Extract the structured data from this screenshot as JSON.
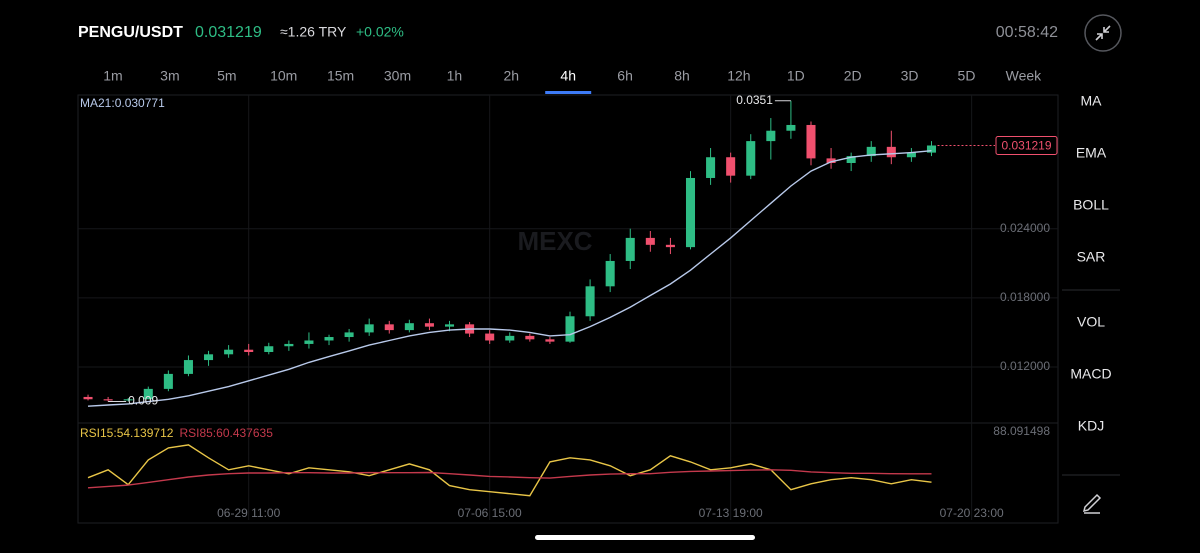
{
  "header": {
    "symbol": "PENGU/USDT",
    "approx": "≈1.26 TRY",
    "change": "+0.02%",
    "time": "00:58:42"
  },
  "timeframes": [
    "1m",
    "3m",
    "5m",
    "10m",
    "15m",
    "30m",
    "1h",
    "2h",
    "4h",
    "6h",
    "8h",
    "12h",
    "1D",
    "2D",
    "3D",
    "5D",
    "Week"
  ],
  "selected_timeframe": 8,
  "indicators": [
    "MA",
    "EMA",
    "BOLL",
    "SAR",
    "VOL",
    "MACD",
    "KDJ"
  ],
  "chart_data": {
    "type": "candlestick",
    "watermark": "MEXC",
    "up_color": "#2ebd85",
    "down_color": "#f0506e",
    "open": [
      0.0094,
      0.0092,
      0.0091,
      0.0092,
      0.0101,
      0.0114,
      0.0126,
      0.0131,
      0.0135,
      0.0133,
      0.0138,
      0.014,
      0.0143,
      0.0146,
      0.015,
      0.0157,
      0.0152,
      0.0158,
      0.0155,
      0.0157,
      0.0149,
      0.0143,
      0.0147,
      0.0144,
      0.0142,
      0.0164,
      0.019,
      0.0212,
      0.0232,
      0.0226,
      0.0224,
      0.0284,
      0.0302,
      0.0286,
      0.0316,
      0.0325,
      0.033,
      0.0301,
      0.0297,
      0.0303,
      0.0311,
      0.0302,
      0.0306
    ],
    "high": [
      0.0096,
      0.0094,
      0.0093,
      0.0103,
      0.0117,
      0.013,
      0.0134,
      0.0139,
      0.014,
      0.0141,
      0.0143,
      0.015,
      0.0148,
      0.0153,
      0.0162,
      0.016,
      0.0161,
      0.0162,
      0.016,
      0.0159,
      0.0152,
      0.015,
      0.0149,
      0.0146,
      0.0168,
      0.0196,
      0.0218,
      0.024,
      0.0238,
      0.0232,
      0.029,
      0.031,
      0.0306,
      0.0322,
      0.0336,
      0.0351,
      0.0333,
      0.031,
      0.0306,
      0.0316,
      0.0325,
      0.031,
      0.0316
    ],
    "low": [
      0.0091,
      0.009,
      0.009022,
      0.0092,
      0.0099,
      0.0112,
      0.0121,
      0.0128,
      0.013,
      0.0131,
      0.0134,
      0.0136,
      0.0139,
      0.0142,
      0.0147,
      0.0149,
      0.015,
      0.0152,
      0.0151,
      0.0146,
      0.014,
      0.0141,
      0.0142,
      0.014,
      0.0141,
      0.016,
      0.0185,
      0.0205,
      0.022,
      0.0218,
      0.0222,
      0.0278,
      0.028,
      0.0283,
      0.03,
      0.0318,
      0.0295,
      0.0292,
      0.029,
      0.0298,
      0.0296,
      0.0298,
      0.0303
    ],
    "close": [
      0.0092,
      0.0091,
      0.0092,
      0.0101,
      0.0114,
      0.0126,
      0.0131,
      0.0135,
      0.0133,
      0.0138,
      0.014,
      0.0143,
      0.0146,
      0.015,
      0.0157,
      0.0152,
      0.0158,
      0.0155,
      0.0157,
      0.0149,
      0.0143,
      0.0147,
      0.0144,
      0.0142,
      0.0164,
      0.019,
      0.0212,
      0.0232,
      0.0226,
      0.0224,
      0.0284,
      0.0302,
      0.0286,
      0.0316,
      0.0325,
      0.033,
      0.0301,
      0.0297,
      0.0303,
      0.0311,
      0.0302,
      0.0306,
      0.031219
    ],
    "series": [
      {
        "name": "MA21",
        "color": "#b8c9ea",
        "values": [
          0.0086,
          0.0087,
          0.0088,
          0.009,
          0.0092,
          0.0095,
          0.0099,
          0.0103,
          0.0108,
          0.0113,
          0.0118,
          0.0124,
          0.0129,
          0.0134,
          0.0139,
          0.0143,
          0.0147,
          0.015,
          0.0152,
          0.0153,
          0.0153,
          0.0152,
          0.015,
          0.0147,
          0.0148,
          0.0155,
          0.0163,
          0.0172,
          0.0182,
          0.0192,
          0.0204,
          0.0218,
          0.0232,
          0.0247,
          0.0262,
          0.0277,
          0.029,
          0.0298,
          0.0302,
          0.0304,
          0.0305,
          0.0306,
          0.030771
        ]
      },
      {
        "name": "RSI15",
        "color": "#e8c547",
        "axis": "y2",
        "values": [
          57.5,
          63.4,
          52.3,
          70.8,
          79.7,
          81.9,
          72.3,
          63.4,
          66.4,
          63.4,
          60.4,
          64.9,
          63.4,
          61.9,
          59,
          63.4,
          67.8,
          63.4,
          51.6,
          48.6,
          47.1,
          45.6,
          44.1,
          69.3,
          72.3,
          70.8,
          66.4,
          59,
          63.4,
          73.8,
          69.3,
          63.4,
          64.9,
          67.8,
          63.4,
          48.6,
          53,
          56,
          57.5,
          56,
          53,
          56,
          54.139712
        ]
      },
      {
        "name": "RSI85",
        "color": "#c4394c",
        "axis": "y2",
        "values": [
          50,
          51,
          52,
          54,
          56,
          58,
          59.5,
          60.5,
          61,
          61,
          61.2,
          61.2,
          61,
          61,
          61.3,
          61.2,
          61.2,
          61.4,
          60.5,
          59.5,
          58.5,
          58,
          57.5,
          57.2,
          58.5,
          59.5,
          60.2,
          60.5,
          60.5,
          61.5,
          62.2,
          62.5,
          62.8,
          63.2,
          63.4,
          63,
          61.8,
          61.2,
          60.8,
          60.8,
          60.5,
          60.4,
          60.437635
        ]
      }
    ],
    "xlim": [
      -0.5,
      48.3
    ],
    "xticks": [
      {
        "value": 8,
        "label": "06-29 11:00"
      },
      {
        "value": 20,
        "label": "07-06 15:00"
      },
      {
        "value": 32,
        "label": "07-13 19:00"
      },
      {
        "value": 44,
        "label": "07-20 23:00"
      }
    ],
    "ylim": [
      0.0074,
      0.0356
    ],
    "yticks": [
      {
        "value": 0.012,
        "label": "0.012000"
      },
      {
        "value": 0.018,
        "label": "0.018000"
      },
      {
        "value": 0.024,
        "label": "0.024000"
      }
    ],
    "y2lim": [
      29,
      96
    ],
    "y2ticks": [
      88.091498
    ],
    "grid": true
  }
}
